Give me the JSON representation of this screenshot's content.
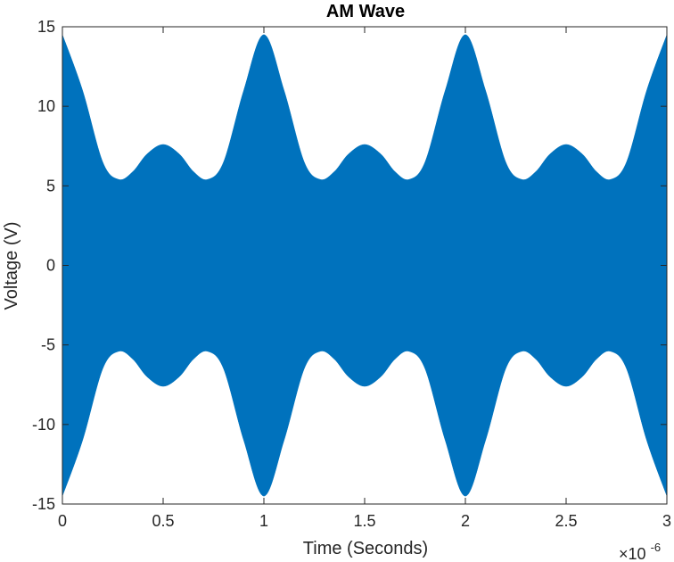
{
  "chart_data": {
    "type": "area",
    "title": "AM Wave",
    "xlabel": "Time (Seconds)",
    "ylabel": "Voltage (V)",
    "x_exponent_base": "×10",
    "x_exponent_power": "-6",
    "xlim": [
      0,
      3
    ],
    "ylim": [
      -15,
      15
    ],
    "x_ticks": [
      0,
      0.5,
      1,
      1.5,
      2,
      2.5,
      3
    ],
    "x_tick_labels": [
      "0",
      "0.5",
      "1",
      "1.5",
      "2",
      "2.5",
      "3"
    ],
    "y_ticks": [
      -15,
      -10,
      -5,
      0,
      5,
      10,
      15
    ],
    "y_tick_labels": [
      "-15",
      "-10",
      "-5",
      "0",
      "5",
      "10",
      "15"
    ],
    "grid": false,
    "series": [
      {
        "color": "#0072bd",
        "envelope_x": [
          0,
          0.1,
          0.2,
          0.28,
          0.35,
          0.42,
          0.5,
          0.58,
          0.65,
          0.72,
          0.8,
          0.9,
          1.0,
          1.1,
          1.2,
          1.28,
          1.35,
          1.42,
          1.5,
          1.58,
          1.65,
          1.72,
          1.8,
          1.9,
          2.0,
          2.1,
          2.2,
          2.28,
          2.35,
          2.42,
          2.5,
          2.58,
          2.65,
          2.72,
          2.8,
          2.9,
          3.0
        ],
        "envelope_upper": [
          14.5,
          11.0,
          6.5,
          5.4,
          5.9,
          7.0,
          7.6,
          7.0,
          5.9,
          5.4,
          6.5,
          11.0,
          14.5,
          11.0,
          6.5,
          5.4,
          5.9,
          7.0,
          7.6,
          7.0,
          5.9,
          5.4,
          6.5,
          11.0,
          14.5,
          11.0,
          6.5,
          5.4,
          5.9,
          7.0,
          7.6,
          7.0,
          5.9,
          5.4,
          6.5,
          11.0,
          14.5
        ]
      }
    ]
  },
  "colors": {
    "fill": "#0072bd",
    "axis": "#262626",
    "background": "#ffffff"
  }
}
